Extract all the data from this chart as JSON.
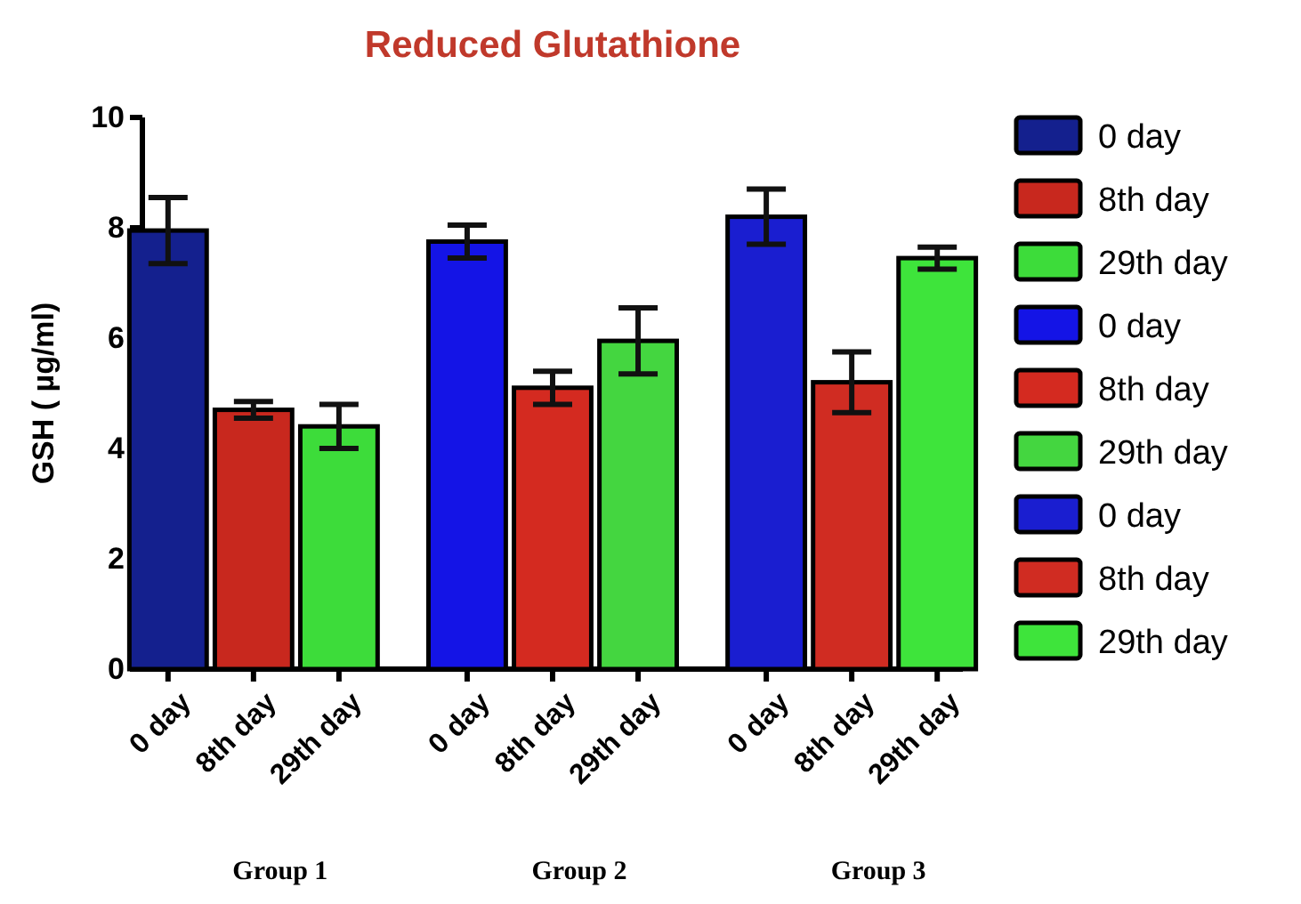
{
  "chart_data": {
    "type": "bar",
    "title": "Reduced Glutathione",
    "ylabel": "GSH ( µg/ml)",
    "categories": [
      "0 day",
      "8th day",
      "29th day",
      "0 day",
      "8th day",
      "29th day",
      "0 day",
      "8th day",
      "29th day"
    ],
    "series": [
      {
        "name": "0 day",
        "color": "#14208e",
        "values": [
          7.95,
          null,
          null,
          null,
          null,
          null,
          null,
          null,
          null
        ],
        "errors": [
          0.6,
          null,
          null,
          null,
          null,
          null,
          null,
          null,
          null
        ]
      },
      {
        "name": "8th day",
        "color": "#c8281e",
        "values": [
          null,
          4.7,
          null,
          null,
          null,
          null,
          null,
          null,
          null
        ],
        "errors": [
          null,
          0.15,
          null,
          null,
          null,
          null,
          null,
          null,
          null
        ]
      },
      {
        "name": "29th day",
        "color": "#3ddc3a",
        "values": [
          null,
          null,
          4.4,
          null,
          null,
          null,
          null,
          null,
          null
        ],
        "errors": [
          null,
          null,
          0.4,
          null,
          null,
          null,
          null,
          null,
          null
        ]
      },
      {
        "name": "0 day",
        "color": "#1414e6",
        "values": [
          null,
          null,
          null,
          7.75,
          null,
          null,
          null,
          null,
          null
        ],
        "errors": [
          null,
          null,
          null,
          0.3,
          null,
          null,
          null,
          null,
          null
        ]
      },
      {
        "name": "8th day",
        "color": "#d42a20",
        "values": [
          null,
          null,
          null,
          null,
          5.1,
          null,
          null,
          null,
          null
        ],
        "errors": [
          null,
          null,
          null,
          null,
          0.3,
          null,
          null,
          null,
          null
        ]
      },
      {
        "name": "29th day",
        "color": "#44d640",
        "values": [
          null,
          null,
          null,
          null,
          null,
          5.95,
          null,
          null,
          null
        ],
        "errors": [
          null,
          null,
          null,
          null,
          null,
          0.6,
          null,
          null,
          null
        ]
      },
      {
        "name": "0 day",
        "color": "#1a1ed0",
        "values": [
          null,
          null,
          null,
          null,
          null,
          null,
          8.2,
          null,
          null
        ],
        "errors": [
          null,
          null,
          null,
          null,
          null,
          null,
          0.5,
          null,
          null
        ]
      },
      {
        "name": "8th day",
        "color": "#d02c22",
        "values": [
          null,
          null,
          null,
          null,
          null,
          null,
          null,
          5.2,
          null
        ],
        "errors": [
          null,
          null,
          null,
          null,
          null,
          null,
          null,
          0.55,
          null
        ]
      },
      {
        "name": "29th day",
        "color": "#3ee43b",
        "values": [
          null,
          null,
          null,
          null,
          null,
          null,
          null,
          null,
          7.45
        ],
        "errors": [
          null,
          null,
          null,
          null,
          null,
          null,
          null,
          null,
          0.2
        ]
      }
    ],
    "ylim": [
      0,
      10
    ],
    "yticks": [
      0,
      2,
      4,
      6,
      8,
      10
    ],
    "grid": false,
    "legend": "right",
    "annotations": [
      "Group 1",
      "Group 2",
      "Group 3"
    ]
  }
}
